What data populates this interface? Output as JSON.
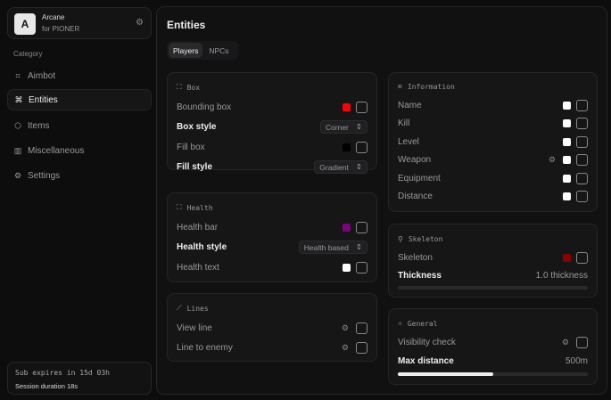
{
  "brand": {
    "logo": "A",
    "name": "Arcane",
    "subtitle": "for PIONER"
  },
  "sidebar": {
    "category_label": "Category",
    "items": [
      {
        "label": "Aimbot",
        "icon": "crosshair-icon",
        "active": false
      },
      {
        "label": "Entities",
        "icon": "scan-icon",
        "active": true
      },
      {
        "label": "Items",
        "icon": "box-icon",
        "active": false
      },
      {
        "label": "Miscellaneous",
        "icon": "grid-icon",
        "active": false
      },
      {
        "label": "Settings",
        "icon": "gear-icon",
        "active": false
      }
    ]
  },
  "subscription": {
    "expires": "Sub expires in 15d 03h",
    "session": "Session duration 18s"
  },
  "main": {
    "title": "Entities",
    "tabs": [
      {
        "label": "Players",
        "active": true
      },
      {
        "label": "NPCs",
        "active": false
      }
    ]
  },
  "box": {
    "title": "Box",
    "bounding_box": "Bounding box",
    "bounding_color": "#ff0000",
    "box_style": "Box style",
    "box_style_value": "Corner",
    "fill_box": "Fill box",
    "fill_color": "#000000",
    "fill_style": "Fill style",
    "fill_style_value": "Gradient"
  },
  "health": {
    "title": "Health",
    "health_bar": "Health bar",
    "bar_color": "#800080",
    "health_style": "Health style",
    "health_style_value": "Health based",
    "health_text": "Health text",
    "text_color": "#ffffff"
  },
  "lines": {
    "title": "Lines",
    "view_line": "View line",
    "line_to_enemy": "Line to enemy"
  },
  "information": {
    "title": "Information",
    "items": [
      {
        "label": "Name"
      },
      {
        "label": "Kill"
      },
      {
        "label": "Level"
      },
      {
        "label": "Weapon",
        "gear": true
      },
      {
        "label": "Equipment"
      },
      {
        "label": "Distance"
      }
    ],
    "color": "#ffffff"
  },
  "skeleton": {
    "title": "Skeleton",
    "skeleton": "Skeleton",
    "color": "#8b0000",
    "thickness": "Thickness",
    "thickness_value": "1.0 thickness",
    "thickness_fraction": 0
  },
  "general": {
    "title": "General",
    "visibility_check": "Visibility check",
    "max_distance": "Max distance",
    "max_distance_value": "500m",
    "max_distance_fraction": 0.5
  }
}
